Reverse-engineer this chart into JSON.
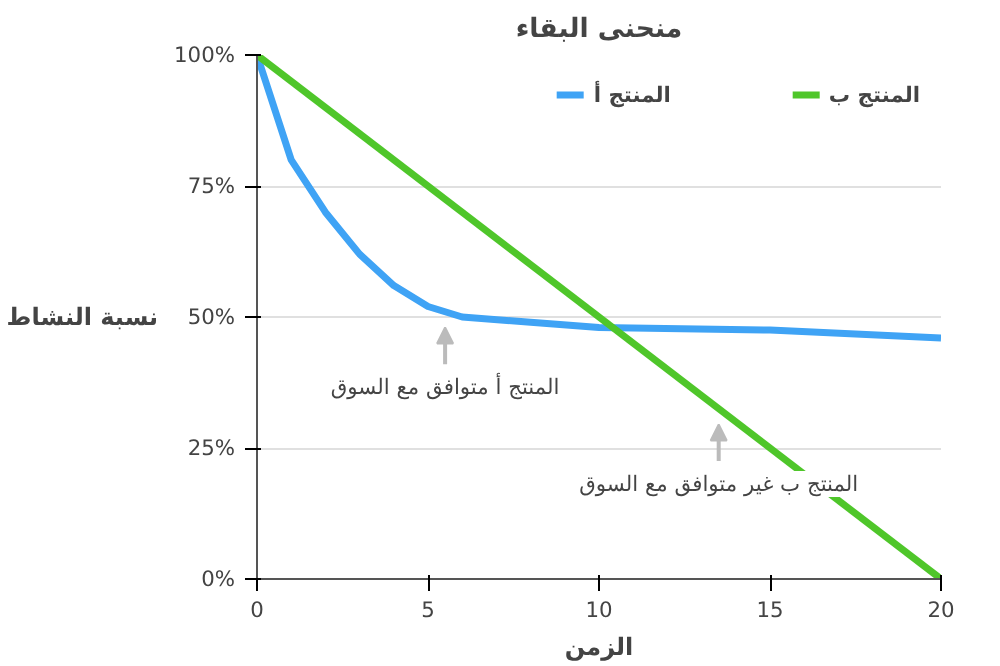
{
  "chart_data": {
    "type": "line",
    "title": "منحنى البقاء",
    "xlabel": "الزمن",
    "ylabel": "نسبة النشاط",
    "xlim": [
      0,
      20
    ],
    "ylim": [
      0,
      100
    ],
    "xticks": [
      0,
      5,
      10,
      15,
      20
    ],
    "yticks": [
      {
        "value": 0,
        "label": "0%"
      },
      {
        "value": 25,
        "label": "25%"
      },
      {
        "value": 50,
        "label": "50%"
      },
      {
        "value": 75,
        "label": "75%"
      },
      {
        "value": 100,
        "label": "100%"
      }
    ],
    "grid": "y",
    "legend": "top right",
    "marker": "none",
    "line_style": "solid",
    "series": [
      {
        "name": "المنتج أ",
        "color": "#3fa3f5",
        "x": [
          0,
          1,
          2,
          3,
          4,
          5,
          6,
          8,
          10,
          15,
          20
        ],
        "values": [
          100,
          80,
          70,
          62,
          56,
          52,
          50,
          49,
          48,
          47.5,
          46
        ]
      },
      {
        "name": "المنتج ب",
        "color": "#4fc62a",
        "x": [
          0,
          20
        ],
        "values": [
          100,
          0
        ]
      }
    ],
    "annotations": [
      {
        "text": "المنتج أ متوافق مع السوق",
        "x": 5.5,
        "y": 51
      },
      {
        "text": "المنتج ب غير متوافق مع السوق",
        "x": 13.5,
        "y": 32.5
      }
    ]
  }
}
